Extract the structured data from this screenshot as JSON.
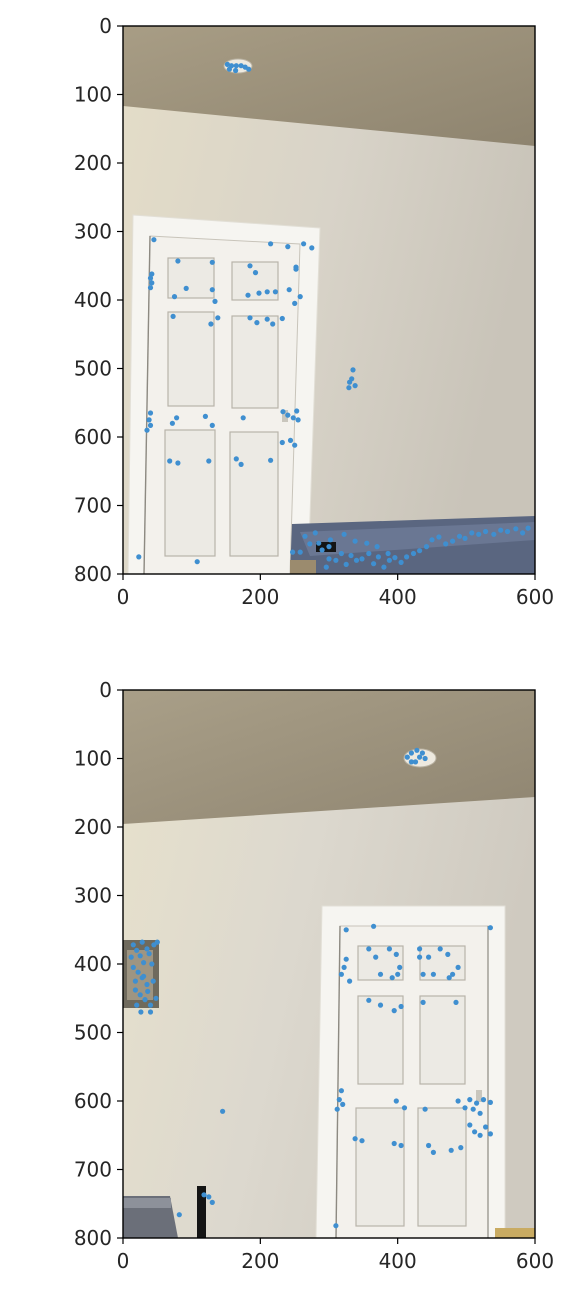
{
  "colors": {
    "marker": "#3f8fd0",
    "axis": "#000000",
    "tick_text": "#262626",
    "ceiling": "#9d927c",
    "wall": "#d6d0c4",
    "door": "#f4f3f0",
    "door_frame": "#f7f6f3",
    "bed": "#59647e",
    "dark_object": "#141414"
  },
  "chart_data": [
    {
      "type": "scatter",
      "title": "",
      "xlabel": "",
      "ylabel": "",
      "xlim": [
        0,
        600
      ],
      "ylim": [
        800,
        0
      ],
      "y_inverted": true,
      "grid": false,
      "xticks": [
        0,
        200,
        400,
        600
      ],
      "yticks": [
        0,
        100,
        200,
        300,
        400,
        500,
        600,
        700,
        800
      ],
      "xtick_labels": [
        "0",
        "200",
        "400",
        "600"
      ],
      "ytick_labels": [
        "0",
        "100",
        "200",
        "300",
        "400",
        "500",
        "600",
        "700",
        "800"
      ],
      "background": "photo of a room: beige ceiling, white wall, white six-panel door, bed at lower right",
      "points": [
        [
          152,
          56
        ],
        [
          158,
          58
        ],
        [
          165,
          58
        ],
        [
          172,
          58
        ],
        [
          178,
          60
        ],
        [
          183,
          63
        ],
        [
          155,
          63
        ],
        [
          164,
          65
        ],
        [
          45,
          312
        ],
        [
          42,
          362
        ],
        [
          40,
          368
        ],
        [
          42,
          375
        ],
        [
          40,
          382
        ],
        [
          80,
          343
        ],
        [
          92,
          383
        ],
        [
          75,
          395
        ],
        [
          73,
          424
        ],
        [
          130,
          345
        ],
        [
          130,
          385
        ],
        [
          134,
          402
        ],
        [
          138,
          426
        ],
        [
          128,
          435
        ],
        [
          185,
          350
        ],
        [
          193,
          360
        ],
        [
          182,
          393
        ],
        [
          198,
          390
        ],
        [
          210,
          388
        ],
        [
          222,
          388
        ],
        [
          185,
          426
        ],
        [
          195,
          433
        ],
        [
          210,
          428
        ],
        [
          218,
          435
        ],
        [
          232,
          427
        ],
        [
          215,
          318
        ],
        [
          240,
          322
        ],
        [
          252,
          355
        ],
        [
          263,
          318
        ],
        [
          275,
          324
        ],
        [
          242,
          385
        ],
        [
          258,
          395
        ],
        [
          250,
          405
        ],
        [
          252,
          352
        ],
        [
          335,
          502
        ],
        [
          333,
          515
        ],
        [
          330,
          520
        ],
        [
          338,
          525
        ],
        [
          329,
          528
        ],
        [
          40,
          565
        ],
        [
          38,
          575
        ],
        [
          40,
          583
        ],
        [
          35,
          590
        ],
        [
          78,
          572
        ],
        [
          72,
          580
        ],
        [
          120,
          570
        ],
        [
          130,
          583
        ],
        [
          68,
          635
        ],
        [
          80,
          638
        ],
        [
          125,
          635
        ],
        [
          165,
          632
        ],
        [
          172,
          640
        ],
        [
          215,
          634
        ],
        [
          175,
          572
        ],
        [
          233,
          563
        ],
        [
          240,
          568
        ],
        [
          248,
          572
        ],
        [
          253,
          562
        ],
        [
          255,
          575
        ],
        [
          244,
          605
        ],
        [
          250,
          612
        ],
        [
          232,
          608
        ],
        [
          23,
          775
        ],
        [
          108,
          782
        ],
        [
          247,
          768
        ],
        [
          258,
          768
        ],
        [
          272,
          756
        ],
        [
          285,
          755
        ],
        [
          290,
          765
        ],
        [
          300,
          778
        ],
        [
          296,
          790
        ],
        [
          310,
          780
        ],
        [
          318,
          770
        ],
        [
          325,
          786
        ],
        [
          332,
          773
        ],
        [
          340,
          780
        ],
        [
          348,
          778
        ],
        [
          358,
          770
        ],
        [
          365,
          785
        ],
        [
          372,
          775
        ],
        [
          380,
          790
        ],
        [
          388,
          780
        ],
        [
          396,
          776
        ],
        [
          405,
          783
        ],
        [
          413,
          775
        ],
        [
          423,
          770
        ],
        [
          432,
          766
        ],
        [
          442,
          760
        ],
        [
          450,
          750
        ],
        [
          460,
          746
        ],
        [
          470,
          756
        ],
        [
          480,
          752
        ],
        [
          490,
          745
        ],
        [
          498,
          748
        ],
        [
          508,
          740
        ],
        [
          518,
          742
        ],
        [
          528,
          738
        ],
        [
          540,
          742
        ],
        [
          550,
          736
        ],
        [
          560,
          738
        ],
        [
          572,
          734
        ],
        [
          582,
          740
        ],
        [
          590,
          733
        ],
        [
          280,
          740
        ],
        [
          302,
          750
        ],
        [
          322,
          742
        ],
        [
          338,
          752
        ],
        [
          355,
          755
        ],
        [
          370,
          760
        ],
        [
          386,
          770
        ],
        [
          300,
          760
        ],
        [
          265,
          745
        ]
      ]
    },
    {
      "type": "scatter",
      "title": "",
      "xlabel": "",
      "ylabel": "",
      "xlim": [
        0,
        600
      ],
      "ylim": [
        800,
        0
      ],
      "y_inverted": true,
      "grid": false,
      "xticks": [
        0,
        200,
        400,
        600
      ],
      "yticks": [
        0,
        100,
        200,
        300,
        400,
        500,
        600,
        700,
        800
      ],
      "xtick_labels": [
        "0",
        "200",
        "400",
        "600"
      ],
      "ytick_labels": [
        "0",
        "100",
        "200",
        "300",
        "400",
        "500",
        "600",
        "700",
        "800"
      ],
      "background": "photo of a room from another angle: beige ceiling, white wall, window at left, white six-panel door at right, bed at lower left",
      "points": [
        [
          420,
          92
        ],
        [
          428,
          88
        ],
        [
          436,
          92
        ],
        [
          440,
          100
        ],
        [
          426,
          105
        ],
        [
          414,
          98
        ],
        [
          420,
          105
        ],
        [
          432,
          98
        ],
        [
          15,
          372
        ],
        [
          20,
          380
        ],
        [
          25,
          388
        ],
        [
          30,
          398
        ],
        [
          15,
          405
        ],
        [
          22,
          412
        ],
        [
          28,
          420
        ],
        [
          35,
          430
        ],
        [
          18,
          438
        ],
        [
          25,
          445
        ],
        [
          32,
          452
        ],
        [
          40,
          460
        ],
        [
          45,
          372
        ],
        [
          50,
          368
        ],
        [
          38,
          385
        ],
        [
          42,
          400
        ],
        [
          30,
          418
        ],
        [
          44,
          425
        ],
        [
          36,
          440
        ],
        [
          48,
          450
        ],
        [
          20,
          460
        ],
        [
          28,
          368
        ],
        [
          35,
          378
        ],
        [
          12,
          390
        ],
        [
          18,
          425
        ],
        [
          40,
          470
        ],
        [
          26,
          470
        ],
        [
          325,
          350
        ],
        [
          365,
          345
        ],
        [
          535,
          347
        ],
        [
          318,
          415
        ],
        [
          322,
          405
        ],
        [
          330,
          425
        ],
        [
          325,
          393
        ],
        [
          358,
          378
        ],
        [
          368,
          390
        ],
        [
          388,
          378
        ],
        [
          398,
          386
        ],
        [
          403,
          405
        ],
        [
          392,
          420
        ],
        [
          400,
          415
        ],
        [
          375,
          415
        ],
        [
          358,
          453
        ],
        [
          375,
          460
        ],
        [
          395,
          468
        ],
        [
          405,
          462
        ],
        [
          432,
          378
        ],
        [
          445,
          390
        ],
        [
          462,
          378
        ],
        [
          473,
          386
        ],
        [
          488,
          405
        ],
        [
          475,
          420
        ],
        [
          480,
          415
        ],
        [
          452,
          415
        ],
        [
          437,
          415
        ],
        [
          437,
          456
        ],
        [
          485,
          456
        ],
        [
          432,
          390
        ],
        [
          318,
          585
        ],
        [
          315,
          598
        ],
        [
          312,
          612
        ],
        [
          320,
          605
        ],
        [
          398,
          600
        ],
        [
          410,
          610
        ],
        [
          440,
          612
        ],
        [
          488,
          600
        ],
        [
          505,
          598
        ],
        [
          515,
          603
        ],
        [
          525,
          598
        ],
        [
          535,
          602
        ],
        [
          510,
          612
        ],
        [
          520,
          618
        ],
        [
          505,
          635
        ],
        [
          512,
          645
        ],
        [
          520,
          650
        ],
        [
          528,
          638
        ],
        [
          535,
          648
        ],
        [
          498,
          610
        ],
        [
          338,
          655
        ],
        [
          348,
          658
        ],
        [
          395,
          662
        ],
        [
          405,
          665
        ],
        [
          445,
          665
        ],
        [
          452,
          675
        ],
        [
          478,
          672
        ],
        [
          492,
          668
        ],
        [
          145,
          615
        ],
        [
          118,
          737
        ],
        [
          125,
          740
        ],
        [
          130,
          748
        ],
        [
          82,
          766
        ],
        [
          310,
          782
        ]
      ]
    }
  ]
}
